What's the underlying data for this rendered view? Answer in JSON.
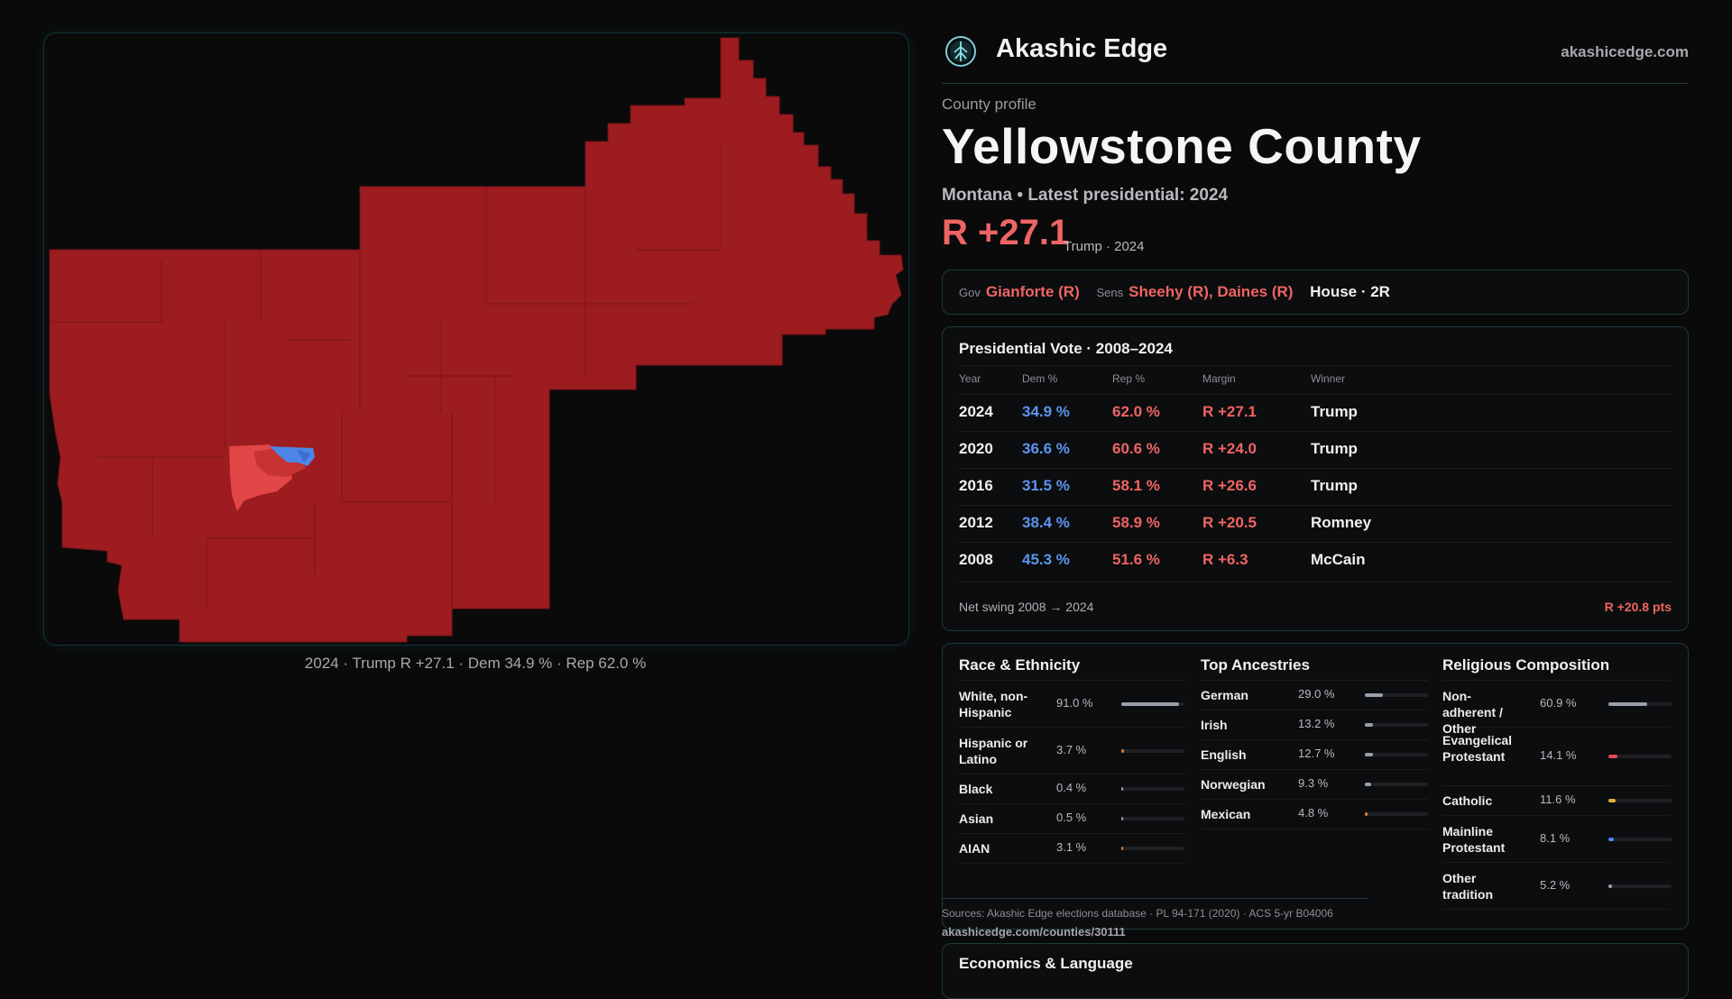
{
  "map": {
    "caption": "2024 · Trump R +27.1 · Dem 34.9 % · Rep 62.0 %",
    "colors": {
      "rep": "#9c1c20",
      "rep_light": "#e34646",
      "dem": "#4d86e8",
      "border": "#7a1417"
    }
  },
  "brand": {
    "name": "Akashic Edge",
    "url": "akashicedge.com",
    "logo_icon": "tree-of-life-icon"
  },
  "profile": {
    "eyebrow": "County profile",
    "title": "Yellowstone County",
    "subtitle": "Montana • Latest presidential: 2024",
    "margin": "R +27.1",
    "margin_note": "Trump · 2024"
  },
  "officials": {
    "gov_key": "Gov",
    "gov": "Gianforte (R)",
    "sens_key": "Sens",
    "sens": "Sheehy (R), Daines (R)",
    "house": "House · 2R"
  },
  "presidential": {
    "title": "Presidential Vote · 2008–2024",
    "headers": [
      "Year",
      "Dem %",
      "Rep %",
      "Margin",
      "Winner"
    ],
    "rows": [
      {
        "year": "2024",
        "dem": "34.9 %",
        "rep": "62.0 %",
        "margin": "R +27.1",
        "winner": "Trump"
      },
      {
        "year": "2020",
        "dem": "36.6 %",
        "rep": "60.6 %",
        "margin": "R +24.0",
        "winner": "Trump"
      },
      {
        "year": "2016",
        "dem": "31.5 %",
        "rep": "58.1 %",
        "margin": "R +26.6",
        "winner": "Trump"
      },
      {
        "year": "2012",
        "dem": "38.4 %",
        "rep": "58.9 %",
        "margin": "R +20.5",
        "winner": "Romney"
      },
      {
        "year": "2008",
        "dem": "45.3 %",
        "rep": "51.6 %",
        "margin": "R +6.3",
        "winner": "McCain"
      }
    ],
    "swing_label": "Net swing 2008 → 2024",
    "swing_value": "R +20.8 pts"
  },
  "demographics": {
    "race": {
      "title": "Race & Ethnicity",
      "items": [
        {
          "label": "White, non-Hispanic",
          "value": "91.0 %",
          "pct": 91.0,
          "color": "#9aa0aa"
        },
        {
          "label": "Hispanic or Latino",
          "value": "3.7 %",
          "pct": 3.7,
          "color": "#e07a2e"
        },
        {
          "label": "Black",
          "value": "0.4 %",
          "pct": 0.4,
          "color": "#9aa0aa"
        },
        {
          "label": "Asian",
          "value": "0.5 %",
          "pct": 0.5,
          "color": "#9aa0aa"
        },
        {
          "label": "AIAN",
          "value": "3.1 %",
          "pct": 3.1,
          "color": "#e07a2e"
        }
      ]
    },
    "ancestry": {
      "title": "Top Ancestries",
      "items": [
        {
          "label": "German",
          "value": "29.0 %",
          "pct": 29.0,
          "color": "#9aa0aa"
        },
        {
          "label": "Irish",
          "value": "13.2 %",
          "pct": 13.2,
          "color": "#9aa0aa"
        },
        {
          "label": "English",
          "value": "12.7 %",
          "pct": 12.7,
          "color": "#9aa0aa"
        },
        {
          "label": "Norwegian",
          "value": "9.3 %",
          "pct": 9.3,
          "color": "#9aa0aa"
        },
        {
          "label": "Mexican",
          "value": "4.8 %",
          "pct": 4.8,
          "color": "#e07a2e"
        }
      ]
    },
    "religion": {
      "title": "Religious Composition",
      "items": [
        {
          "label": "Non-adherent / Other",
          "value": "60.9 %",
          "pct": 60.9,
          "color": "#9aa0aa"
        },
        {
          "label": "Evangelical Protestant",
          "value": "14.1 %",
          "pct": 14.1,
          "color": "#e34a55"
        },
        {
          "label": "Catholic",
          "value": "11.6 %",
          "pct": 11.6,
          "color": "#e0b030"
        },
        {
          "label": "Mainline Protestant",
          "value": "8.1 %",
          "pct": 8.1,
          "color": "#4d86e8"
        },
        {
          "label": "Other tradition",
          "value": "5.2 %",
          "pct": 5.2,
          "color": "#9aa0aa"
        }
      ]
    }
  },
  "sources": {
    "text": "Sources: Akashic Edge elections database · PL 94-171 (2020) · ACS 5-yr B04006",
    "url": "akashicedge.com/counties/30111"
  },
  "economics": {
    "title": "Economics & Language"
  }
}
